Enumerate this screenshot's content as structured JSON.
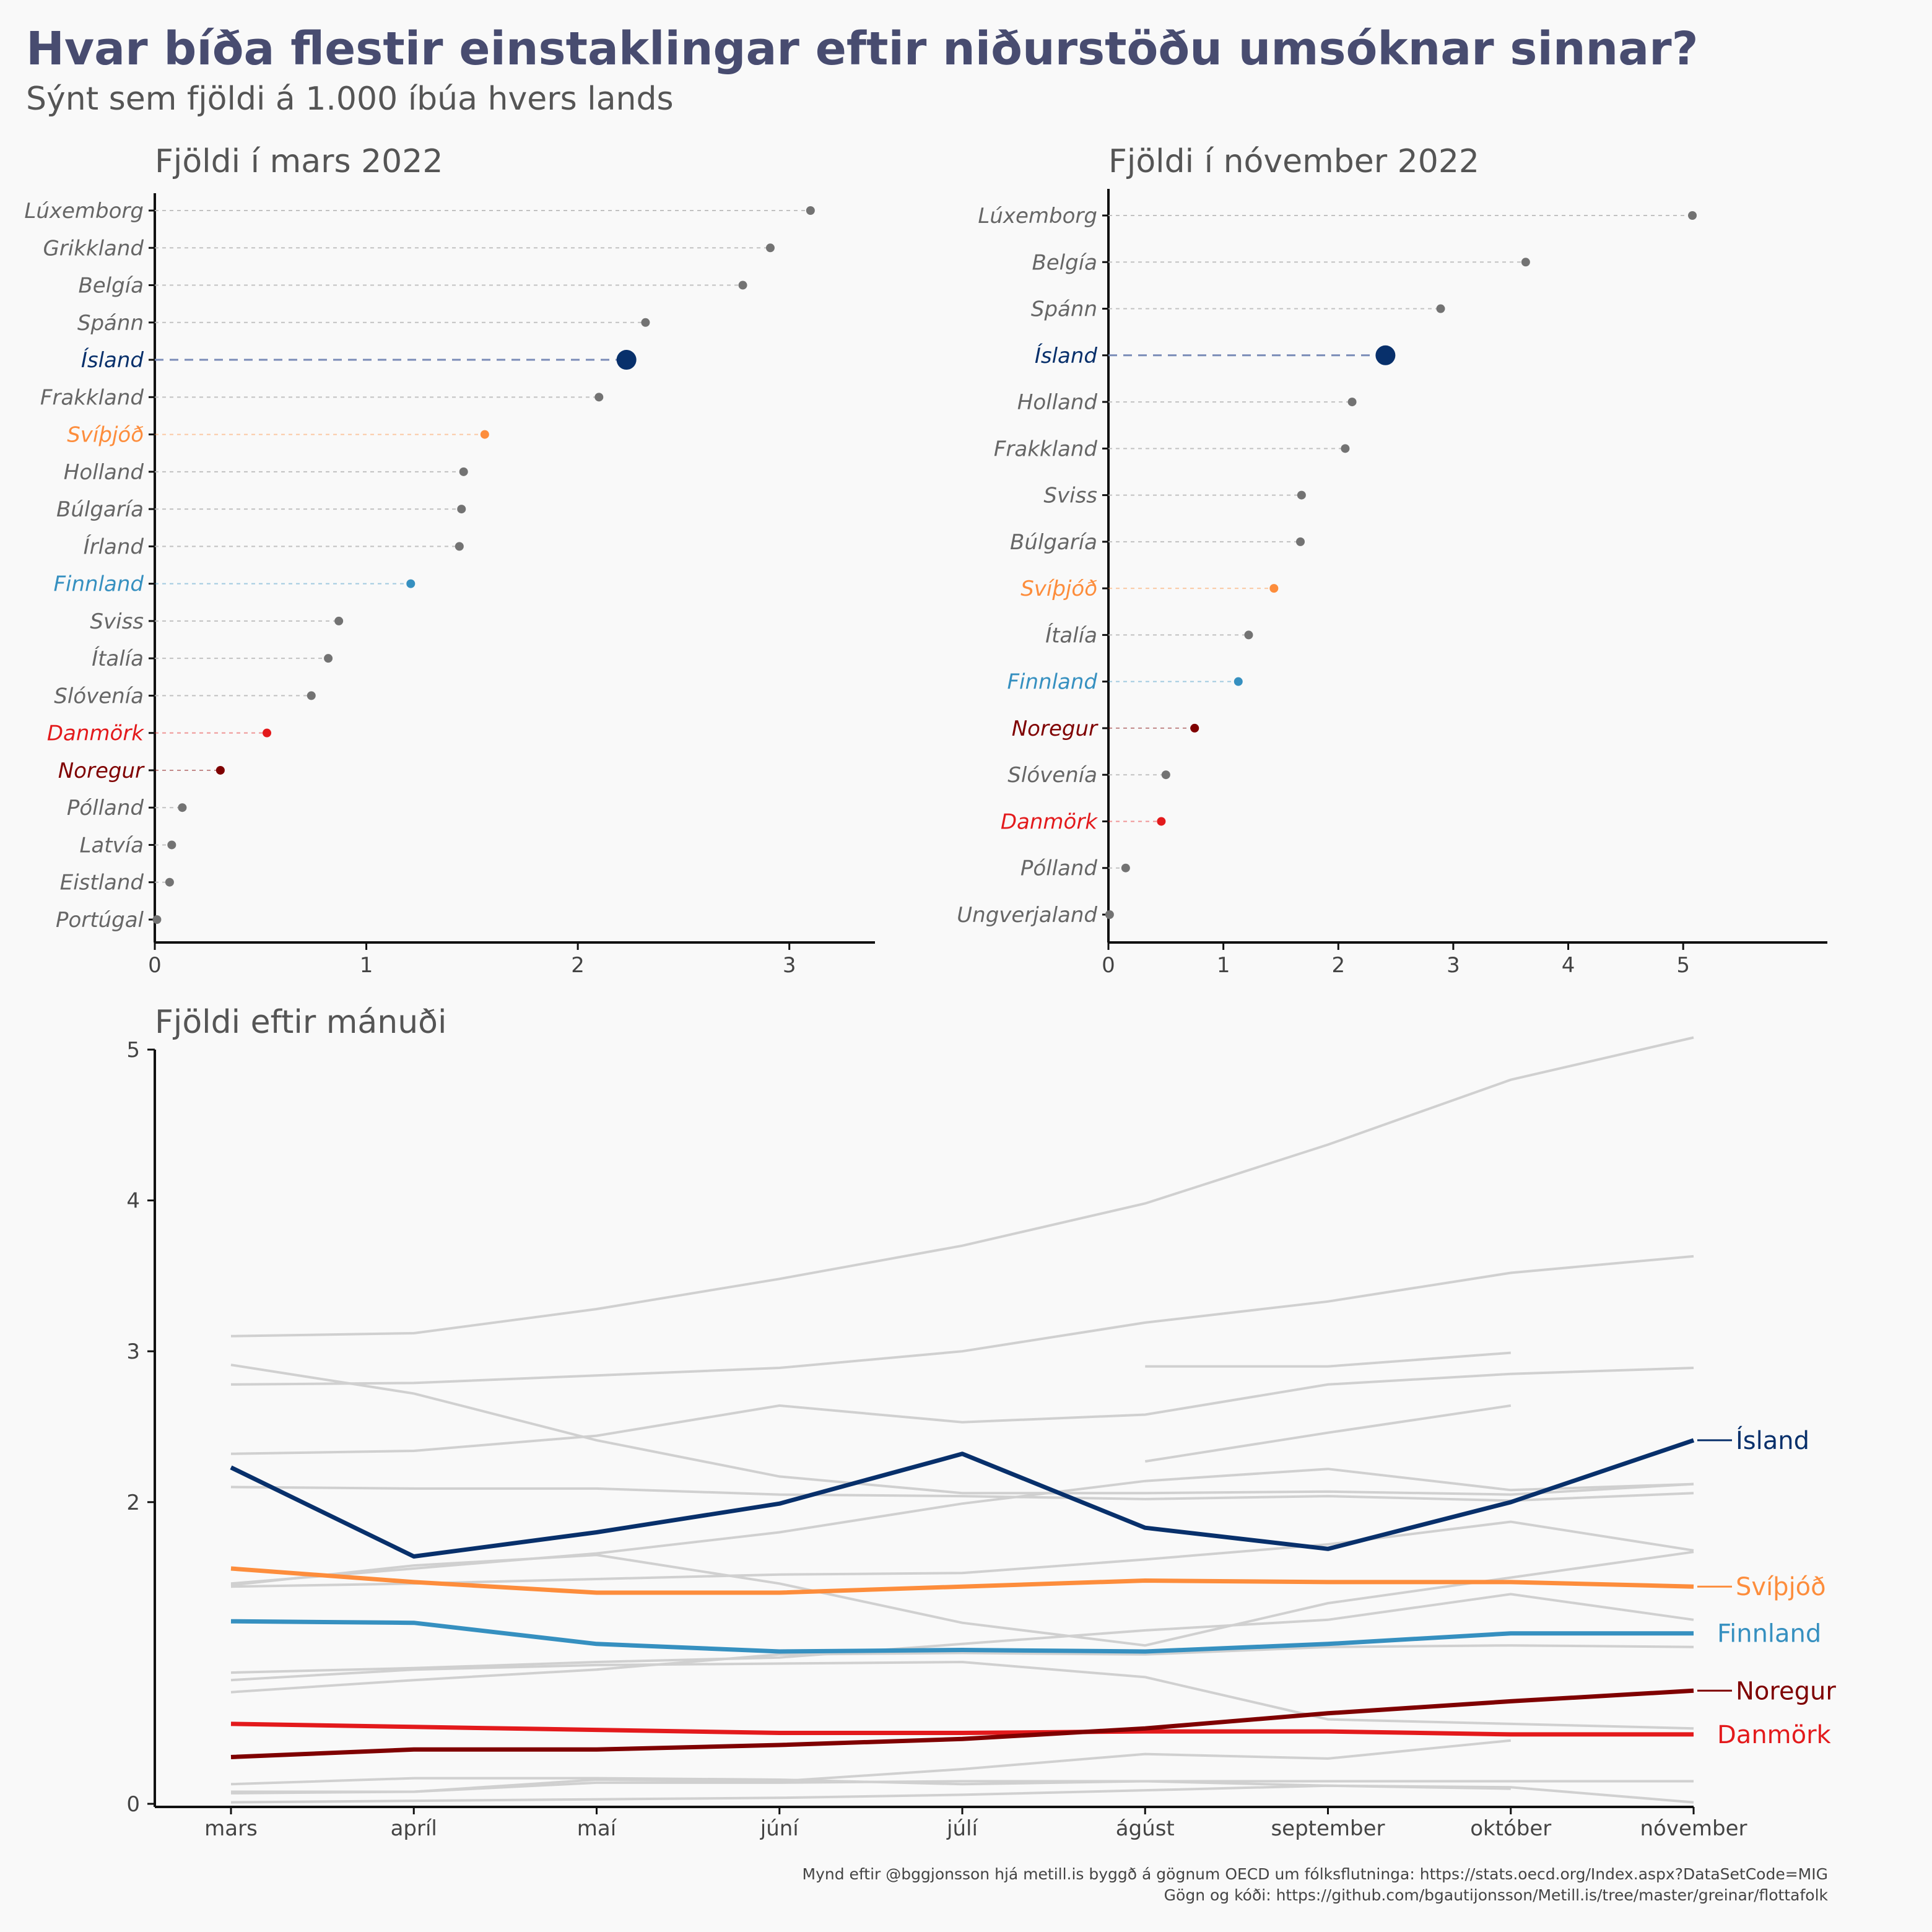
{
  "title": "Hvar bíða flestir einstaklingar eftir niðurstöðu umsóknar sinnar?",
  "subtitle": "Sýnt sem fjöldi á 1.000 íbúa hvers lands",
  "caption": [
    "Mynd eftir @bggjonsson hjá metill.is byggð á gögnum OECD um fólksflutninga: https://stats.oecd.org/Index.aspx?DataSetCode=MIG",
    "Gögn og kóði: https://github.com/bgautijonsson/Metill.is/tree/master/greinar/flottafolk"
  ],
  "colors": {
    "Ísland": "#08306b",
    "Svíþjóð": "#fd8d3c",
    "Finnland": "#3690c0",
    "Noregur": "#7f0000",
    "Danmörk": "#e31a1c",
    "other_point": "#737373",
    "other_line": "#d0d0d0"
  },
  "chart_data": [
    {
      "type": "dot",
      "title": "Fjöldi í mars 2022",
      "xlim": [
        0,
        3.2
      ],
      "xticks": [
        0,
        1,
        2,
        3
      ],
      "categories": [
        "Lúxemborg",
        "Grikkland",
        "Belgía",
        "Spánn",
        "Ísland",
        "Frakkland",
        "Svíþjóð",
        "Holland",
        "Búlgaría",
        "Írland",
        "Finnland",
        "Sviss",
        "Ítalía",
        "Slóvenía",
        "Danmörk",
        "Noregur",
        "Pólland",
        "Latvía",
        "Eistland",
        "Portúgal"
      ],
      "values": [
        3.1,
        2.91,
        2.78,
        2.32,
        2.23,
        2.1,
        1.56,
        1.46,
        1.45,
        1.44,
        1.21,
        0.87,
        0.82,
        0.74,
        0.53,
        0.31,
        0.13,
        0.08,
        0.07,
        0.01
      ]
    },
    {
      "type": "dot",
      "title": "Fjöldi í nóvember 2022",
      "xlim": [
        0,
        5.5
      ],
      "xticks": [
        0,
        1,
        2,
        3,
        4,
        5
      ],
      "categories": [
        "Lúxemborg",
        "Belgía",
        "Spánn",
        "Ísland",
        "Holland",
        "Frakkland",
        "Sviss",
        "Búlgaría",
        "Svíþjóð",
        "Ítalía",
        "Finnland",
        "Noregur",
        "Slóvenía",
        "Danmörk",
        "Pólland",
        "Ungverjaland"
      ],
      "values": [
        5.08,
        3.63,
        2.89,
        2.41,
        2.12,
        2.06,
        1.68,
        1.67,
        1.44,
        1.22,
        1.13,
        0.75,
        0.5,
        0.46,
        0.15,
        0.01
      ]
    },
    {
      "type": "line",
      "title": "Fjöldi eftir mánuði",
      "x": [
        "mars",
        "apríl",
        "maí",
        "júní",
        "júlí",
        "ágúst",
        "september",
        "október",
        "nóvember"
      ],
      "ylim": [
        0,
        5
      ],
      "yticks": [
        0,
        2,
        3,
        4,
        5
      ],
      "series": [
        {
          "name": "Ísland",
          "values": [
            2.23,
            1.64,
            1.8,
            1.99,
            2.32,
            1.83,
            1.69,
            2.0,
            2.41
          ],
          "label": "Ísland",
          "label_dash": true
        },
        {
          "name": "Svíþjóð",
          "values": [
            1.56,
            1.47,
            1.4,
            1.4,
            1.44,
            1.48,
            1.47,
            1.47,
            1.44
          ],
          "label": "Svíþjóð",
          "label_dash": true
        },
        {
          "name": "Finnland",
          "values": [
            1.21,
            1.2,
            1.06,
            1.01,
            1.02,
            1.01,
            1.06,
            1.13,
            1.13
          ],
          "label": "Finnland",
          "label_dash": false
        },
        {
          "name": "Noregur",
          "values": [
            0.31,
            0.36,
            0.36,
            0.39,
            0.43,
            0.5,
            0.6,
            0.68,
            0.75
          ],
          "label": "Noregur",
          "label_dash": true
        },
        {
          "name": "Danmörk",
          "values": [
            0.53,
            0.51,
            0.49,
            0.47,
            0.47,
            0.48,
            0.48,
            0.46,
            0.46
          ],
          "label": "Danmörk",
          "label_dash": false
        },
        {
          "name": "",
          "values": [
            3.1,
            3.12,
            3.28,
            3.48,
            3.7,
            3.98,
            4.37,
            4.8,
            5.08
          ]
        },
        {
          "name": "",
          "values": [
            2.78,
            2.79,
            2.84,
            2.89,
            3.0,
            3.19,
            3.33,
            3.52,
            3.63
          ]
        },
        {
          "name": "",
          "values": [
            2.91,
            2.72,
            2.41,
            2.17,
            2.06,
            2.06,
            2.07,
            2.05,
            2.12
          ]
        },
        {
          "name": "",
          "values": [
            2.32,
            2.34,
            2.44,
            2.64,
            2.53,
            2.58,
            2.78,
            2.85,
            2.89
          ]
        },
        {
          "name": "",
          "values": [
            null,
            null,
            null,
            null,
            null,
            2.9,
            2.9,
            2.99,
            null
          ]
        },
        {
          "name": "",
          "values": [
            null,
            null,
            null,
            null,
            null,
            2.27,
            2.46,
            2.64,
            null
          ]
        },
        {
          "name": "",
          "values": [
            2.1,
            2.09,
            2.09,
            2.05,
            2.04,
            2.02,
            2.04,
            2.01,
            2.06
          ]
        },
        {
          "name": "",
          "values": [
            1.46,
            1.56,
            1.66,
            1.8,
            1.99,
            2.14,
            2.22,
            2.08,
            2.12
          ]
        },
        {
          "name": "",
          "values": [
            1.45,
            1.58,
            1.65,
            1.46,
            1.2,
            1.05,
            1.33,
            1.5,
            1.67
          ]
        },
        {
          "name": "",
          "values": [
            1.44,
            1.46,
            1.49,
            1.52,
            1.53,
            1.62,
            1.72,
            1.87,
            1.68
          ]
        },
        {
          "name": "",
          "values": [
            0.87,
            0.9,
            0.94,
            0.97,
            1.06,
            1.15,
            1.22,
            1.39,
            1.22
          ]
        },
        {
          "name": "",
          "values": [
            0.82,
            0.89,
            0.92,
            0.93,
            0.94,
            0.84,
            0.56,
            0.53,
            0.5
          ]
        },
        {
          "name": "",
          "values": [
            0.74,
            0.82,
            0.89,
            0.99,
            1.0,
            0.99,
            1.04,
            1.05,
            1.04
          ]
        },
        {
          "name": "",
          "values": [
            0.13,
            0.17,
            0.17,
            0.16,
            0.13,
            0.15,
            0.12,
            0.1,
            null
          ]
        },
        {
          "name": "",
          "values": [
            0.08,
            0.08,
            0.16,
            0.15,
            0.23,
            0.33,
            0.3,
            0.42,
            null
          ]
        },
        {
          "name": "",
          "values": [
            0.07,
            0.08,
            0.14,
            0.14,
            0.15,
            0.15,
            0.15,
            0.15,
            0.15
          ]
        },
        {
          "name": "",
          "values": [
            0.01,
            0.02,
            0.03,
            0.04,
            0.06,
            0.09,
            0.12,
            0.11,
            0.01
          ]
        }
      ]
    }
  ]
}
